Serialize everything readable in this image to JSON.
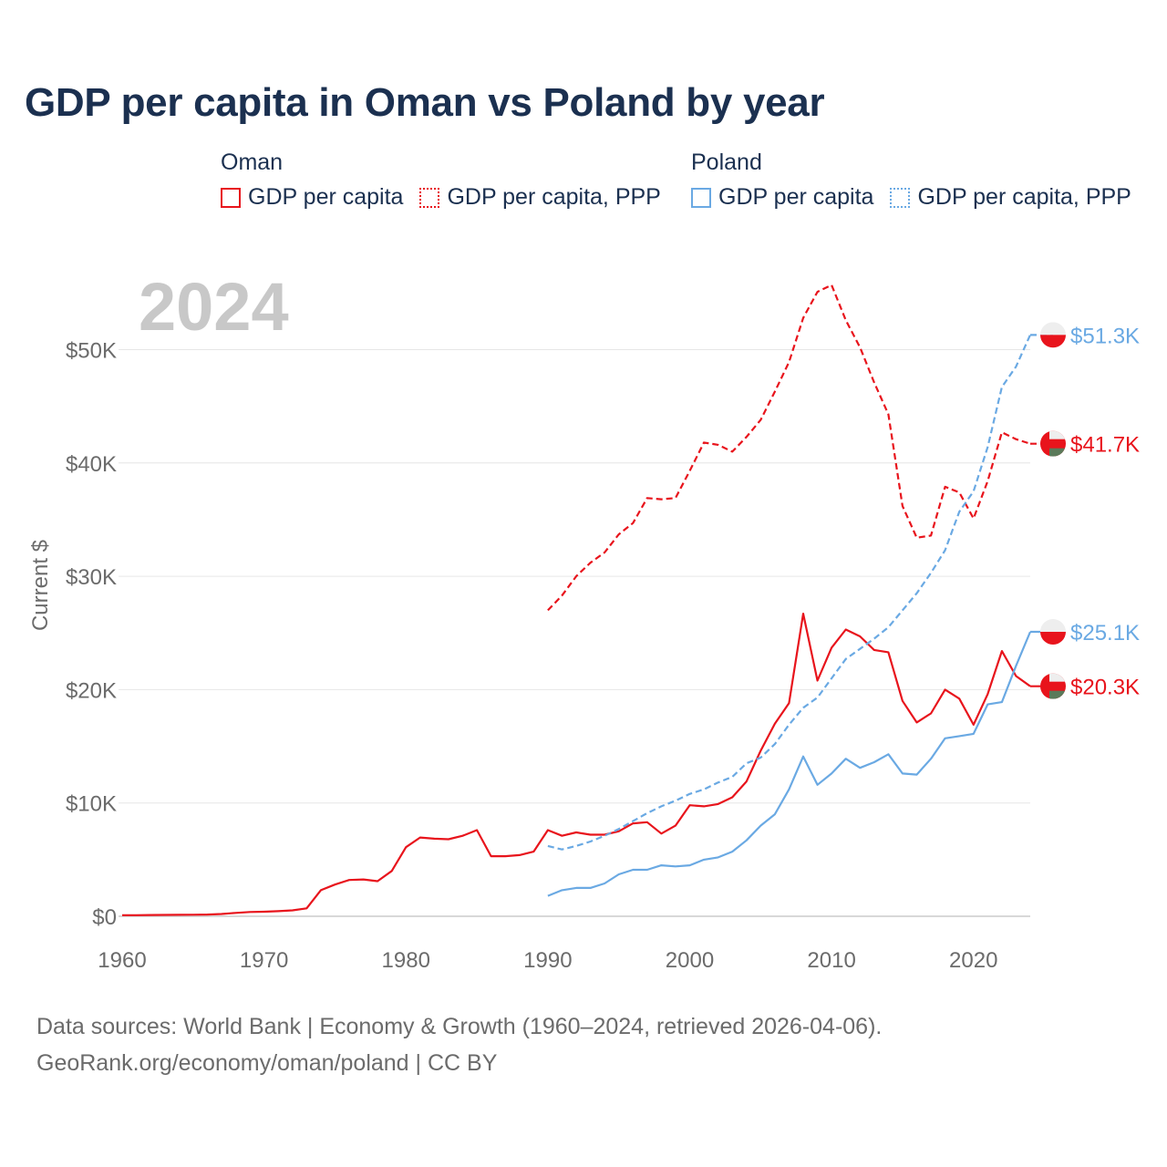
{
  "chart_data": {
    "type": "line",
    "title": "GDP per capita in Oman vs Poland by year",
    "year_label": "2024",
    "ylabel": "Current $",
    "xlim": [
      1960,
      2024
    ],
    "ylim": [
      0,
      56000
    ],
    "x_ticks": [
      1960,
      1970,
      1980,
      1990,
      2000,
      2010,
      2020
    ],
    "x_tick_labels": [
      "1960",
      "1970",
      "1980",
      "1990",
      "2000",
      "2010",
      "2020"
    ],
    "y_ticks": [
      0,
      10000,
      20000,
      30000,
      40000,
      50000
    ],
    "y_tick_labels": [
      "$0",
      "$10K",
      "$20K",
      "$30K",
      "$40K",
      "$50K"
    ],
    "legend": {
      "groups": [
        {
          "name": "Oman",
          "items": [
            "GDP per capita",
            "GDP per capita, PPP"
          ]
        },
        {
          "name": "Poland",
          "items": [
            "GDP per capita",
            "GDP per capita, PPP"
          ]
        }
      ]
    },
    "colors": {
      "oman": "#e8141c",
      "poland": "#6aa9e3"
    },
    "series": [
      {
        "name": "Oman GDP per capita",
        "country": "oman",
        "dashed": false,
        "end_label": "$20.3K",
        "start_year": 1960,
        "values": [
          100,
          100,
          110,
          120,
          130,
          140,
          150,
          200,
          300,
          380,
          400,
          450,
          520,
          700,
          2300,
          2800,
          3200,
          3250,
          3100,
          4000,
          6100,
          6950,
          6850,
          6800,
          7100,
          7600,
          5300,
          5300,
          5400,
          5700,
          7600,
          7100,
          7400,
          7200,
          7200,
          7500,
          8200,
          8300,
          7300,
          8000,
          9800,
          9700,
          9900,
          10500,
          11900,
          14600,
          17000,
          18800,
          26700,
          20800,
          23700,
          25300,
          24700,
          23500,
          23300,
          19000,
          17100,
          17900,
          20000,
          19200,
          16900,
          19600,
          23400,
          21200,
          20300
        ]
      },
      {
        "name": "Oman GDP per capita, PPP",
        "country": "oman",
        "dashed": true,
        "end_label": "$41.7K",
        "start_year": 1990,
        "values": [
          27000,
          28300,
          30000,
          31200,
          32100,
          33700,
          34700,
          36900,
          36800,
          36900,
          39300,
          41800,
          41600,
          41000,
          42300,
          43800,
          46300,
          48900,
          52800,
          55100,
          55700,
          52600,
          50200,
          47100,
          44300,
          36200,
          33400,
          33600,
          37900,
          37400,
          35100,
          38400,
          42700,
          42100,
          41700
        ]
      },
      {
        "name": "Poland GDP per capita",
        "country": "poland",
        "dashed": false,
        "end_label": "$25.1K",
        "start_year": 1990,
        "values": [
          1800,
          2300,
          2500,
          2500,
          2900,
          3700,
          4100,
          4100,
          4500,
          4400,
          4500,
          5000,
          5200,
          5700,
          6700,
          8000,
          9000,
          11200,
          14100,
          11600,
          12600,
          13900,
          13100,
          13600,
          14300,
          12600,
          12500,
          13900,
          15700,
          15900,
          16100,
          18700,
          18900,
          22100,
          25100
        ]
      },
      {
        "name": "Poland GDP per capita, PPP",
        "country": "poland",
        "dashed": true,
        "end_label": "$51.3K",
        "start_year": 1990,
        "values": [
          6200,
          5900,
          6200,
          6600,
          7100,
          7700,
          8400,
          9100,
          9700,
          10200,
          10800,
          11200,
          11800,
          12300,
          13500,
          14000,
          15200,
          16900,
          18400,
          19300,
          21000,
          22700,
          23600,
          24500,
          25500,
          27000,
          28500,
          30300,
          32300,
          35700,
          37500,
          41400,
          46700,
          48500,
          51300
        ]
      }
    ]
  },
  "footer": {
    "line1": "Data sources: World Bank | Economy & Growth (1960–2024, retrieved 2026-04-06).",
    "line2": "GeoRank.org/economy/oman/poland | CC BY"
  }
}
